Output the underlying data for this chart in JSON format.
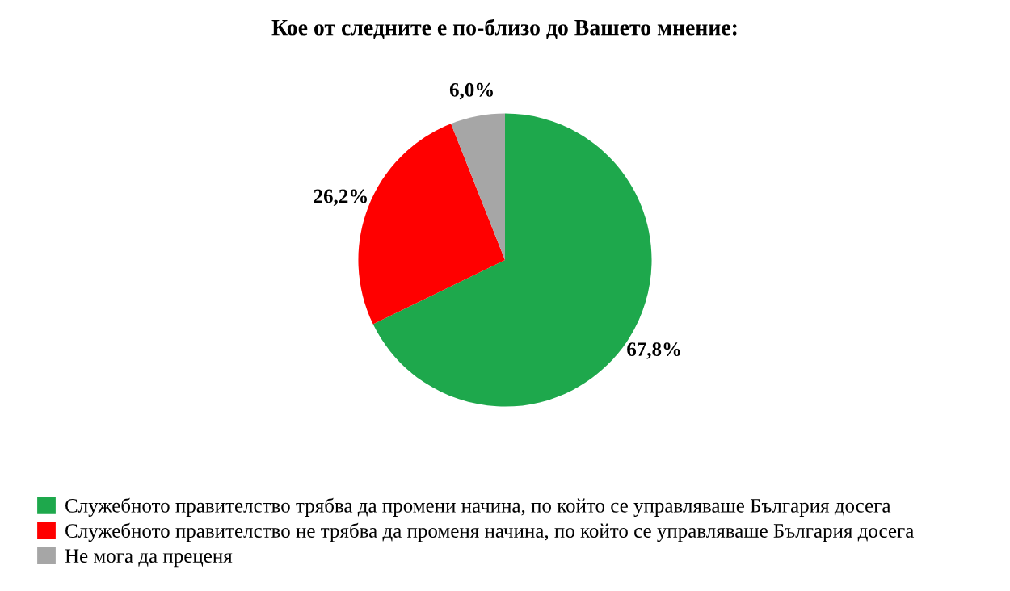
{
  "chart_data": {
    "type": "pie",
    "title": "Кое от следните е по-близо до Вашето мнение:",
    "categories": [
      "Служебното правителство трябва да промени начина, по който се управляваше България досега",
      "Служебното правителство не трябва да променя начина, по който се управляваше България досега",
      "Не мога да преценя"
    ],
    "values": [
      67.8,
      26.2,
      6.0
    ],
    "colors": [
      "#1ea84c",
      "#ff0000",
      "#a6a6a6"
    ],
    "value_labels": [
      "67,8%",
      "26,2%",
      "6,0%"
    ],
    "legend": "bottom"
  }
}
